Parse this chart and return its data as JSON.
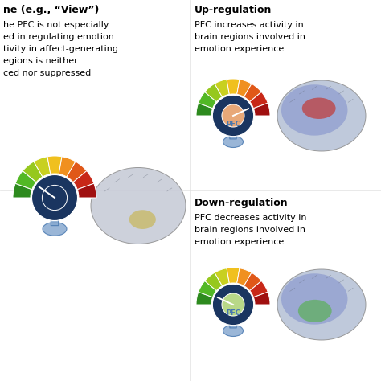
{
  "bg_color": "#ffffff",
  "title_fontsize": 9,
  "body_fontsize": 8,
  "left_title": "ne (e.g., “View”)",
  "left_body_lines": [
    "he PFC is not especially",
    "ed in regulating emotion",
    "tivity in affect-generating",
    "egions is neither",
    "ced nor suppressed"
  ],
  "up_title": "Up-regulation",
  "up_body_lines": [
    "PFC increases activity in",
    "brain regions involved in",
    "emotion experience"
  ],
  "down_title": "Down-regulation",
  "down_body_lines": [
    "PFC decreases activity in",
    "brain regions involved in",
    "emotion experience"
  ],
  "dial_colors": [
    "#2d8a1e",
    "#52b825",
    "#96c81e",
    "#c8d020",
    "#f0c01e",
    "#f09020",
    "#e05818",
    "#c82818",
    "#a01010"
  ],
  "dark_navy": "#1a3560",
  "medium_blue": "#3060a0",
  "hand_blue": "#4878b0",
  "hand_light": "#88aad0",
  "up_needle_color": "#e8a878",
  "down_needle_color": "#b8d888",
  "left_needle_color": "#1a3560",
  "pfc_label": "PFC",
  "pfc_fontsize": 6,
  "brain_base_color": "#c8d0e0",
  "brain_edge_color": "#909090",
  "up_brain_purple": "#7080c8",
  "up_brain_red": "#c04040",
  "down_brain_green": "#60b060",
  "down_brain_teal": "#60a890"
}
